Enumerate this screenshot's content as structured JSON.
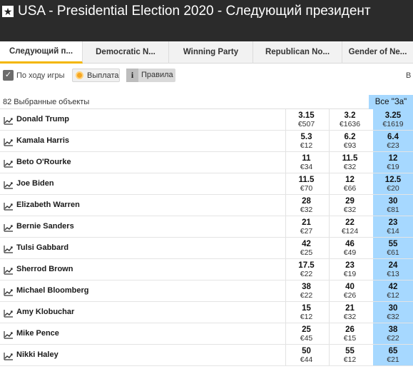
{
  "header": {
    "star": "★",
    "title": "USA - Presidential Election 2020 - Следующий президент"
  },
  "tabs": [
    {
      "label": "Следующий п...",
      "active": true
    },
    {
      "label": "Democratic N...",
      "active": false
    },
    {
      "label": "Winning Party",
      "active": false
    },
    {
      "label": "Republican No...",
      "active": false
    },
    {
      "label": "Gender of Ne...",
      "active": false
    }
  ],
  "toolbar": {
    "inplay_check": "✓",
    "inplay_label": "По ходу игры",
    "payout_label": "Выплата",
    "rules_icon": "i",
    "rules_label": "Правила",
    "edge_letter": "В"
  },
  "market": {
    "selections_label": "82 Выбранные объекты",
    "all_back_label": "Все \"За\""
  },
  "colors": {
    "titlebar": "#2b2b2b",
    "back_blue": "#a6d8ff",
    "active_tab_accent": "#f3b600",
    "payout_dot": "#f5a623"
  },
  "runners": [
    {
      "name": "Donald Trump",
      "p1": {
        "odds": "3.15",
        "amt": "€507"
      },
      "p2": {
        "odds": "3.2",
        "amt": "€1636"
      },
      "p3": {
        "odds": "3.25",
        "amt": "€1619"
      }
    },
    {
      "name": "Kamala Harris",
      "p1": {
        "odds": "5.3",
        "amt": "€12"
      },
      "p2": {
        "odds": "6.2",
        "amt": "€93"
      },
      "p3": {
        "odds": "6.4",
        "amt": "€23"
      }
    },
    {
      "name": "Beto O'Rourke",
      "p1": {
        "odds": "11",
        "amt": "€34"
      },
      "p2": {
        "odds": "11.5",
        "amt": "€32"
      },
      "p3": {
        "odds": "12",
        "amt": "€19"
      }
    },
    {
      "name": "Joe Biden",
      "p1": {
        "odds": "11.5",
        "amt": "€70"
      },
      "p2": {
        "odds": "12",
        "amt": "€66"
      },
      "p3": {
        "odds": "12.5",
        "amt": "€20"
      }
    },
    {
      "name": "Elizabeth Warren",
      "p1": {
        "odds": "28",
        "amt": "€32"
      },
      "p2": {
        "odds": "29",
        "amt": "€32"
      },
      "p3": {
        "odds": "30",
        "amt": "€81"
      }
    },
    {
      "name": "Bernie Sanders",
      "p1": {
        "odds": "21",
        "amt": "€27"
      },
      "p2": {
        "odds": "22",
        "amt": "€124"
      },
      "p3": {
        "odds": "23",
        "amt": "€14"
      }
    },
    {
      "name": "Tulsi Gabbard",
      "p1": {
        "odds": "42",
        "amt": "€25"
      },
      "p2": {
        "odds": "46",
        "amt": "€49"
      },
      "p3": {
        "odds": "55",
        "amt": "€61"
      }
    },
    {
      "name": "Sherrod Brown",
      "p1": {
        "odds": "17.5",
        "amt": "€22"
      },
      "p2": {
        "odds": "23",
        "amt": "€19"
      },
      "p3": {
        "odds": "24",
        "amt": "€13"
      }
    },
    {
      "name": "Michael Bloomberg",
      "p1": {
        "odds": "38",
        "amt": "€22"
      },
      "p2": {
        "odds": "40",
        "amt": "€26"
      },
      "p3": {
        "odds": "42",
        "amt": "€12"
      }
    },
    {
      "name": "Amy Klobuchar",
      "p1": {
        "odds": "15",
        "amt": "€12"
      },
      "p2": {
        "odds": "21",
        "amt": "€32"
      },
      "p3": {
        "odds": "30",
        "amt": "€32"
      }
    },
    {
      "name": "Mike Pence",
      "p1": {
        "odds": "25",
        "amt": "€45"
      },
      "p2": {
        "odds": "26",
        "amt": "€15"
      },
      "p3": {
        "odds": "38",
        "amt": "€22"
      }
    },
    {
      "name": "Nikki Haley",
      "p1": {
        "odds": "50",
        "amt": "€44"
      },
      "p2": {
        "odds": "55",
        "amt": "€12"
      },
      "p3": {
        "odds": "65",
        "amt": "€21"
      }
    }
  ]
}
